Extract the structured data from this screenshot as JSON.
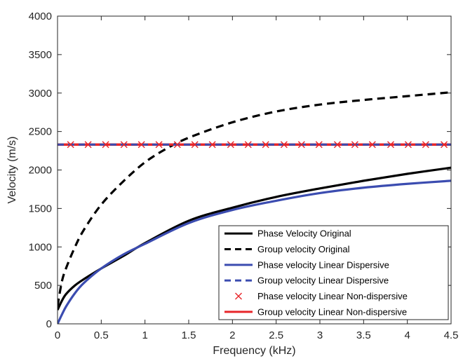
{
  "chart_data": {
    "type": "line",
    "xlabel": "Frequency (kHz)",
    "ylabel": "Velocity (m/s)",
    "xlim": [
      0,
      4.5
    ],
    "ylim": [
      0,
      4000
    ],
    "x_ticks": [
      "0",
      "0.5",
      "1",
      "1.5",
      "2",
      "2.5",
      "3",
      "3.5",
      "4",
      "4.5"
    ],
    "y_ticks": [
      "0",
      "500",
      "1000",
      "1500",
      "2000",
      "2500",
      "3000",
      "3500",
      "4000"
    ],
    "grid": false,
    "legend_position": "bottom-right",
    "series": [
      {
        "name": "Phase Velocity Original",
        "style": "solid",
        "color": "#000000",
        "x": [
          0,
          0.05,
          0.1,
          0.2,
          0.3,
          0.5,
          0.75,
          1.0,
          1.5,
          2.0,
          2.5,
          3.0,
          3.5,
          4.0,
          4.5
        ],
        "y": [
          180,
          300,
          390,
          500,
          580,
          720,
          880,
          1050,
          1340,
          1510,
          1650,
          1760,
          1860,
          1950,
          2030
        ]
      },
      {
        "name": "Group velocity Original",
        "style": "dashed",
        "color": "#000000",
        "x": [
          0,
          0.05,
          0.1,
          0.2,
          0.3,
          0.5,
          0.75,
          1.0,
          1.25,
          1.5,
          2.0,
          2.5,
          3.0,
          3.5,
          4.0,
          4.5
        ],
        "y": [
          230,
          550,
          730,
          1000,
          1220,
          1550,
          1850,
          2100,
          2280,
          2420,
          2620,
          2760,
          2850,
          2910,
          2960,
          3010
        ]
      },
      {
        "name": "Phase velocity Linear Dispersive",
        "style": "solid",
        "color": "#3b4cb0",
        "x": [
          0,
          0.05,
          0.1,
          0.2,
          0.3,
          0.5,
          0.75,
          1.0,
          1.5,
          2.0,
          2.5,
          3.0,
          3.5,
          4.0,
          4.5
        ],
        "y": [
          0,
          120,
          230,
          400,
          530,
          720,
          900,
          1040,
          1310,
          1480,
          1600,
          1700,
          1770,
          1820,
          1860
        ]
      },
      {
        "name": "Group velocity Linear Dispersive",
        "style": "dashed",
        "color": "#3b4cb0",
        "x": [
          0,
          4.5
        ],
        "y": [
          2330,
          2330
        ]
      },
      {
        "name": "Phase velocity Linear Non-dispersive",
        "style": "markers",
        "marker": "x",
        "color": "#e8262a",
        "x": [
          0.15,
          0.35,
          0.55,
          0.76,
          0.96,
          1.16,
          1.37,
          1.57,
          1.77,
          1.98,
          2.18,
          2.38,
          2.59,
          2.79,
          2.99,
          3.2,
          3.4,
          3.6,
          3.81,
          4.01,
          4.21,
          4.42
        ],
        "y": [
          2330,
          2330,
          2330,
          2330,
          2330,
          2330,
          2330,
          2330,
          2330,
          2330,
          2330,
          2330,
          2330,
          2330,
          2330,
          2330,
          2330,
          2330,
          2330,
          2330,
          2330,
          2330
        ]
      },
      {
        "name": "Group velocity Linear Non-dispersive",
        "style": "solid",
        "color": "#e8262a",
        "x": [
          0,
          4.5
        ],
        "y": [
          2330,
          2330
        ]
      }
    ]
  }
}
